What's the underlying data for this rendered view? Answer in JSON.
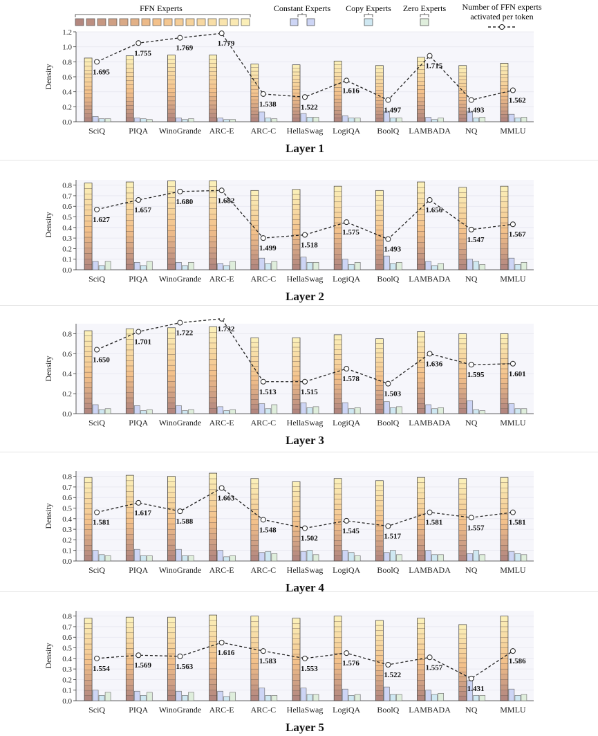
{
  "legend": {
    "ffn_label": "FFN Experts",
    "constant_label": "Constant Experts",
    "copy_label": "Copy Experts",
    "zero_label": "Zero Experts",
    "line_label_1": "Number of FFN experts",
    "line_label_2": "activated per token"
  },
  "colors": {
    "ffn_bottom": "#b3877f",
    "ffn_mid": "#f3c08a",
    "ffn_top": "#fbefb8",
    "constant": "#cdd5f5",
    "copy": "#cfe8f2",
    "zero": "#dfeedc",
    "line": "#222222",
    "plot_bg": "#f6f6fb"
  },
  "chart_data": [
    {
      "type": "bar",
      "title": "Layer 1",
      "ylabel": "Density",
      "ylim": [
        0,
        1.2
      ],
      "yticks": [
        "0.0",
        "0.2",
        "0.4",
        "0.6",
        "0.8",
        "1.0",
        "1.2"
      ],
      "categories": [
        "SciQ",
        "PIQA",
        "WinoGrande",
        "ARC-E",
        "ARC-C",
        "HellaSwag",
        "LogiQA",
        "BoolQ",
        "LAMBADA",
        "NQ",
        "MMLU"
      ],
      "series": [
        {
          "name": "FFN Experts",
          "values": [
            0.85,
            0.88,
            0.89,
            0.89,
            0.77,
            0.76,
            0.81,
            0.75,
            0.86,
            0.75,
            0.78
          ]
        },
        {
          "name": "Constant Experts",
          "values": [
            0.07,
            0.05,
            0.05,
            0.05,
            0.13,
            0.11,
            0.08,
            0.14,
            0.06,
            0.14,
            0.1
          ]
        },
        {
          "name": "Copy Experts",
          "values": [
            0.04,
            0.04,
            0.03,
            0.03,
            0.05,
            0.06,
            0.05,
            0.05,
            0.03,
            0.05,
            0.05
          ]
        },
        {
          "name": "Zero Experts",
          "values": [
            0.04,
            0.03,
            0.04,
            0.03,
            0.04,
            0.06,
            0.05,
            0.05,
            0.05,
            0.06,
            0.06
          ]
        }
      ],
      "line": {
        "name": "Number of FFN experts activated per token",
        "values": [
          0.8,
          1.05,
          1.12,
          1.18,
          0.37,
          0.33,
          0.55,
          0.29,
          0.88,
          0.29,
          0.42
        ],
        "labels": [
          "1.695",
          "1.755",
          "1.769",
          "1.779",
          "1.538",
          "1.522",
          "1.616",
          "1.497",
          "1.715",
          "1.493",
          "1.562"
        ]
      }
    },
    {
      "type": "bar",
      "title": "Layer 2",
      "ylabel": "Density",
      "ylim": [
        0,
        0.85
      ],
      "yticks": [
        "0.0",
        "0.1",
        "0.2",
        "0.3",
        "0.4",
        "0.5",
        "0.6",
        "0.7",
        "0.8"
      ],
      "categories": [
        "SciQ",
        "PIQA",
        "WinoGrande",
        "ARC-E",
        "ARC-C",
        "HellaSwag",
        "LogiQA",
        "BoolQ",
        "LAMBADA",
        "NQ",
        "MMLU"
      ],
      "series": [
        {
          "name": "FFN Experts",
          "values": [
            0.82,
            0.83,
            0.84,
            0.84,
            0.75,
            0.76,
            0.79,
            0.75,
            0.83,
            0.78,
            0.79
          ]
        },
        {
          "name": "Constant Experts",
          "values": [
            0.08,
            0.07,
            0.07,
            0.06,
            0.11,
            0.12,
            0.1,
            0.13,
            0.08,
            0.1,
            0.11
          ]
        },
        {
          "name": "Copy Experts",
          "values": [
            0.04,
            0.04,
            0.04,
            0.04,
            0.06,
            0.07,
            0.05,
            0.06,
            0.04,
            0.08,
            0.05
          ]
        },
        {
          "name": "Zero Experts",
          "values": [
            0.08,
            0.08,
            0.07,
            0.08,
            0.08,
            0.07,
            0.07,
            0.07,
            0.06,
            0.05,
            0.07
          ]
        }
      ],
      "line": {
        "name": "Number of FFN experts activated per token",
        "values": [
          0.57,
          0.66,
          0.74,
          0.75,
          0.3,
          0.33,
          0.45,
          0.29,
          0.66,
          0.38,
          0.43
        ],
        "labels": [
          "1.627",
          "1.657",
          "1.680",
          "1.682",
          "1.499",
          "1.518",
          "1.575",
          "1.493",
          "1.656",
          "1.547",
          "1.567"
        ]
      }
    },
    {
      "type": "bar",
      "title": "Layer 3",
      "ylabel": "Density",
      "ylim": [
        0,
        0.9
      ],
      "yticks": [
        "0.0",
        "0.2",
        "0.4",
        "0.6",
        "0.8"
      ],
      "categories": [
        "SciQ",
        "PIQA",
        "WinoGrande",
        "ARC-E",
        "ARC-C",
        "HellaSwag",
        "LogiQA",
        "BoolQ",
        "LAMBADA",
        "NQ",
        "MMLU"
      ],
      "series": [
        {
          "name": "FFN Experts",
          "values": [
            0.83,
            0.85,
            0.86,
            0.87,
            0.76,
            0.76,
            0.79,
            0.75,
            0.82,
            0.8,
            0.8
          ]
        },
        {
          "name": "Constant Experts",
          "values": [
            0.09,
            0.08,
            0.08,
            0.07,
            0.1,
            0.11,
            0.11,
            0.12,
            0.09,
            0.13,
            0.1
          ]
        },
        {
          "name": "Copy Experts",
          "values": [
            0.04,
            0.03,
            0.03,
            0.03,
            0.05,
            0.06,
            0.05,
            0.06,
            0.05,
            0.04,
            0.05
          ]
        },
        {
          "name": "Zero Experts",
          "values": [
            0.05,
            0.04,
            0.04,
            0.04,
            0.09,
            0.07,
            0.06,
            0.07,
            0.06,
            0.03,
            0.05
          ]
        }
      ],
      "line": {
        "name": "Number of FFN experts activated per token",
        "values": [
          0.64,
          0.82,
          0.91,
          0.95,
          0.32,
          0.32,
          0.45,
          0.3,
          0.6,
          0.49,
          0.5
        ],
        "labels": [
          "1.650",
          "1.701",
          "1.722",
          "1.732",
          "1.513",
          "1.515",
          "1.578",
          "1.503",
          "1.636",
          "1.595",
          "1.601"
        ]
      }
    },
    {
      "type": "bar",
      "title": "Layer 4",
      "ylabel": "Density",
      "ylim": [
        0,
        0.85
      ],
      "yticks": [
        "0.0",
        "0.1",
        "0.2",
        "0.3",
        "0.4",
        "0.5",
        "0.6",
        "0.7",
        "0.8"
      ],
      "categories": [
        "SciQ",
        "PIQA",
        "WinoGrande",
        "ARC-E",
        "ARC-C",
        "HellaSwag",
        "LogiQA",
        "BoolQ",
        "LAMBADA",
        "NQ",
        "MMLU"
      ],
      "series": [
        {
          "name": "FFN Experts",
          "values": [
            0.79,
            0.81,
            0.8,
            0.83,
            0.78,
            0.75,
            0.78,
            0.76,
            0.79,
            0.78,
            0.79
          ]
        },
        {
          "name": "Constant Experts",
          "values": [
            0.1,
            0.11,
            0.11,
            0.1,
            0.08,
            0.09,
            0.1,
            0.08,
            0.1,
            0.07,
            0.09
          ]
        },
        {
          "name": "Copy Experts",
          "values": [
            0.06,
            0.05,
            0.05,
            0.04,
            0.09,
            0.1,
            0.08,
            0.1,
            0.06,
            0.1,
            0.07
          ]
        },
        {
          "name": "Zero Experts",
          "values": [
            0.05,
            0.05,
            0.05,
            0.05,
            0.07,
            0.06,
            0.05,
            0.06,
            0.06,
            0.06,
            0.06
          ]
        }
      ],
      "line": {
        "name": "Number of FFN experts activated per token",
        "values": [
          0.46,
          0.55,
          0.47,
          0.69,
          0.39,
          0.31,
          0.38,
          0.33,
          0.46,
          0.41,
          0.46
        ],
        "labels": [
          "1.581",
          "1.617",
          "1.588",
          "1.663",
          "1.548",
          "1.502",
          "1.545",
          "1.517",
          "1.581",
          "1.557",
          "1.581"
        ]
      }
    },
    {
      "type": "bar",
      "title": "Layer 5",
      "ylabel": "Density",
      "ylim": [
        0,
        0.85
      ],
      "yticks": [
        "0.0",
        "0.1",
        "0.2",
        "0.3",
        "0.4",
        "0.5",
        "0.6",
        "0.7",
        "0.8"
      ],
      "categories": [
        "SciQ",
        "PIQA",
        "WinoGrande",
        "ARC-E",
        "ARC-C",
        "HellaSwag",
        "LogiQA",
        "BoolQ",
        "LAMBADA",
        "NQ",
        "MMLU"
      ],
      "series": [
        {
          "name": "FFN Experts",
          "values": [
            0.78,
            0.79,
            0.79,
            0.81,
            0.8,
            0.78,
            0.8,
            0.76,
            0.78,
            0.72,
            0.8
          ]
        },
        {
          "name": "Constant Experts",
          "values": [
            0.1,
            0.09,
            0.09,
            0.09,
            0.12,
            0.12,
            0.11,
            0.13,
            0.1,
            0.19,
            0.11
          ]
        },
        {
          "name": "Copy Experts",
          "values": [
            0.05,
            0.05,
            0.05,
            0.04,
            0.05,
            0.06,
            0.05,
            0.06,
            0.06,
            0.05,
            0.05
          ]
        },
        {
          "name": "Zero Experts",
          "values": [
            0.08,
            0.08,
            0.08,
            0.08,
            0.05,
            0.06,
            0.06,
            0.06,
            0.07,
            0.05,
            0.06
          ]
        }
      ],
      "line": {
        "name": "Number of FFN experts activated per token",
        "values": [
          0.4,
          0.43,
          0.42,
          0.55,
          0.47,
          0.4,
          0.45,
          0.34,
          0.41,
          0.21,
          0.47
        ],
        "labels": [
          "1.554",
          "1.569",
          "1.563",
          "1.616",
          "1.583",
          "1.553",
          "1.576",
          "1.522",
          "1.557",
          "1.431",
          "1.586"
        ]
      }
    }
  ]
}
